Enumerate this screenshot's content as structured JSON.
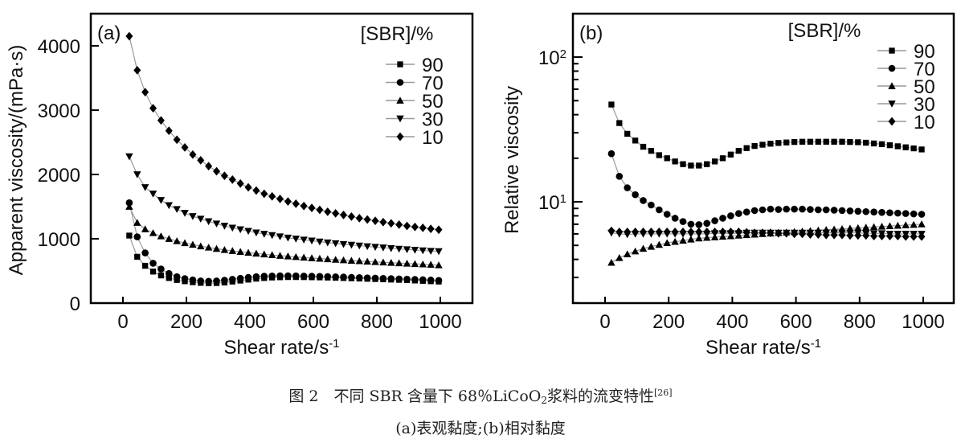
{
  "caption": {
    "line1_prefix": "图 2　不同 SBR 含量下 68％LiCoO",
    "line1_sub": "2",
    "line1_suffix": "浆料的流变特性",
    "line1_ref": "[26]",
    "line2": "(a)表观黏度;(b)相对黏度"
  },
  "chart_data": [
    {
      "type": "scatter",
      "panel_label": "(a)",
      "title": "",
      "xlabel": "Shear rate/s",
      "xlabel_sup": "-1",
      "ylabel": "Apparent viscosity/(mPa·s)",
      "xlim": [
        -100,
        1100
      ],
      "ylim": [
        0,
        4500
      ],
      "yscale": "linear",
      "xticks": [
        0,
        200,
        400,
        600,
        800,
        1000
      ],
      "yticks": [
        0,
        1000,
        2000,
        3000,
        4000
      ],
      "ytick_labels": [
        "0",
        "1000",
        "2000",
        "3000",
        "4000"
      ],
      "grid": false,
      "legend": {
        "title": "[SBR]/%",
        "placement": "top-right"
      },
      "x": [
        20,
        45,
        70,
        95,
        120,
        145,
        170,
        195,
        220,
        245,
        270,
        295,
        320,
        345,
        370,
        395,
        420,
        445,
        470,
        495,
        520,
        545,
        570,
        595,
        620,
        645,
        670,
        695,
        720,
        745,
        770,
        795,
        820,
        845,
        870,
        895,
        920,
        945,
        970,
        995
      ],
      "series": [
        {
          "name": "90",
          "marker": "square",
          "values": [
            1050,
            720,
            580,
            490,
            430,
            390,
            360,
            340,
            325,
            315,
            310,
            312,
            320,
            335,
            350,
            365,
            380,
            390,
            398,
            402,
            405,
            405,
            404,
            402,
            400,
            397,
            394,
            390,
            386,
            382,
            378,
            374,
            370,
            366,
            362,
            358,
            352,
            346,
            340,
            335
          ]
        },
        {
          "name": "70",
          "marker": "circle",
          "values": [
            1560,
            1030,
            780,
            620,
            530,
            460,
            410,
            380,
            360,
            345,
            340,
            345,
            355,
            370,
            385,
            400,
            410,
            418,
            422,
            425,
            425,
            423,
            420,
            418,
            415,
            412,
            408,
            405,
            400,
            396,
            392,
            388,
            384,
            380,
            376,
            372,
            368,
            364,
            358,
            352
          ]
        },
        {
          "name": "50",
          "marker": "triangle-up",
          "values": [
            1500,
            1250,
            1150,
            1090,
            1040,
            1000,
            965,
            935,
            910,
            885,
            865,
            845,
            828,
            812,
            798,
            785,
            772,
            760,
            748,
            738,
            728,
            718,
            709,
            700,
            692,
            684,
            676,
            668,
            661,
            654,
            647,
            640,
            634,
            628,
            622,
            616,
            610,
            604,
            598,
            590
          ]
        },
        {
          "name": "30",
          "marker": "triangle-down",
          "values": [
            2280,
            2000,
            1800,
            1700,
            1600,
            1520,
            1460,
            1400,
            1350,
            1310,
            1270,
            1235,
            1200,
            1170,
            1145,
            1120,
            1095,
            1075,
            1055,
            1035,
            1015,
            1000,
            985,
            970,
            955,
            940,
            928,
            916,
            904,
            893,
            882,
            872,
            862,
            852,
            843,
            834,
            826,
            818,
            810,
            805
          ]
        },
        {
          "name": "10",
          "marker": "diamond",
          "values": [
            4150,
            3620,
            3280,
            3030,
            2840,
            2680,
            2540,
            2420,
            2310,
            2220,
            2130,
            2050,
            1980,
            1920,
            1860,
            1800,
            1750,
            1700,
            1660,
            1620,
            1580,
            1545,
            1510,
            1480,
            1450,
            1420,
            1395,
            1370,
            1345,
            1320,
            1300,
            1280,
            1260,
            1240,
            1220,
            1200,
            1185,
            1170,
            1155,
            1140
          ]
        }
      ]
    },
    {
      "type": "scatter",
      "panel_label": "(b)",
      "title": "",
      "xlabel": "Shear rate/s",
      "xlabel_sup": "-1",
      "ylabel": "Relative viscosity",
      "xlim": [
        -100,
        1100
      ],
      "ylim": [
        2,
        200
      ],
      "yscale": "log",
      "xticks": [
        0,
        200,
        400,
        600,
        800,
        1000
      ],
      "yticks_major": [
        10,
        100
      ],
      "ytick_labels": [
        {
          "base": "10",
          "exp": "1"
        },
        {
          "base": "10",
          "exp": "2"
        }
      ],
      "grid": false,
      "legend": {
        "title": "[SBR]/%",
        "placement": "top-right"
      },
      "x": [
        20,
        45,
        70,
        95,
        120,
        145,
        170,
        195,
        220,
        245,
        270,
        295,
        320,
        345,
        370,
        395,
        420,
        445,
        470,
        495,
        520,
        545,
        570,
        595,
        620,
        645,
        670,
        695,
        720,
        745,
        770,
        795,
        820,
        845,
        870,
        895,
        920,
        945,
        970,
        995
      ],
      "series": [
        {
          "name": "90",
          "marker": "square",
          "values": [
            47,
            35,
            29.5,
            26.5,
            24,
            22.5,
            21,
            20,
            19,
            18.2,
            17.8,
            17.8,
            18.2,
            19,
            20,
            21.2,
            22.5,
            23.5,
            24.3,
            24.8,
            25.2,
            25.5,
            25.7,
            25.9,
            26,
            26,
            26,
            26,
            26,
            26,
            25.9,
            25.8,
            25.6,
            25.3,
            25,
            24.6,
            24.2,
            23.8,
            23.4,
            23
          ]
        },
        {
          "name": "70",
          "marker": "circle",
          "values": [
            21.5,
            15,
            12.5,
            11.2,
            10.2,
            9.5,
            8.8,
            8.2,
            7.7,
            7.3,
            7.0,
            6.95,
            7.1,
            7.4,
            7.7,
            8.0,
            8.3,
            8.5,
            8.7,
            8.8,
            8.9,
            8.85,
            8.9,
            8.9,
            8.9,
            8.85,
            8.8,
            8.8,
            8.75,
            8.7,
            8.65,
            8.6,
            8.55,
            8.5,
            8.45,
            8.4,
            8.35,
            8.3,
            8.25,
            8.2
          ]
        },
        {
          "name": "50",
          "marker": "triangle-up",
          "values": [
            3.8,
            4.1,
            4.35,
            4.55,
            4.75,
            4.9,
            5.05,
            5.2,
            5.3,
            5.4,
            5.5,
            5.6,
            5.65,
            5.7,
            5.75,
            5.8,
            5.85,
            5.9,
            5.95,
            6.0,
            6.05,
            6.1,
            6.15,
            6.2,
            6.25,
            6.3,
            6.35,
            6.4,
            6.45,
            6.5,
            6.55,
            6.6,
            6.65,
            6.7,
            6.75,
            6.8,
            6.85,
            6.9,
            6.95,
            7.0
          ]
        },
        {
          "name": "30",
          "marker": "triangle-down",
          "values": [
            6.1,
            6.0,
            5.95,
            6.0,
            6.0,
            6.0,
            6.0,
            6.0,
            6.0,
            6.0,
            6.0,
            6.0,
            6.0,
            6.05,
            6.05,
            6.05,
            6.05,
            6.1,
            6.1,
            6.1,
            6.1,
            6.1,
            6.1,
            6.1,
            6.1,
            6.1,
            6.1,
            6.1,
            6.1,
            6.1,
            6.1,
            6.1,
            6.05,
            6.05,
            6.05,
            6.0,
            6.0,
            6.0,
            6.0,
            6.0
          ]
        },
        {
          "name": "10",
          "marker": "diamond",
          "values": [
            6.3,
            6.2,
            6.2,
            6.2,
            6.2,
            6.2,
            6.2,
            6.2,
            6.2,
            6.2,
            6.2,
            6.2,
            6.2,
            6.2,
            6.2,
            6.2,
            6.2,
            6.15,
            6.1,
            6.1,
            6.1,
            6.05,
            6.05,
            6.0,
            6.0,
            5.95,
            5.95,
            5.9,
            5.9,
            5.9,
            5.85,
            5.85,
            5.85,
            5.8,
            5.8,
            5.8,
            5.8,
            5.75,
            5.75,
            5.75
          ]
        }
      ]
    }
  ]
}
